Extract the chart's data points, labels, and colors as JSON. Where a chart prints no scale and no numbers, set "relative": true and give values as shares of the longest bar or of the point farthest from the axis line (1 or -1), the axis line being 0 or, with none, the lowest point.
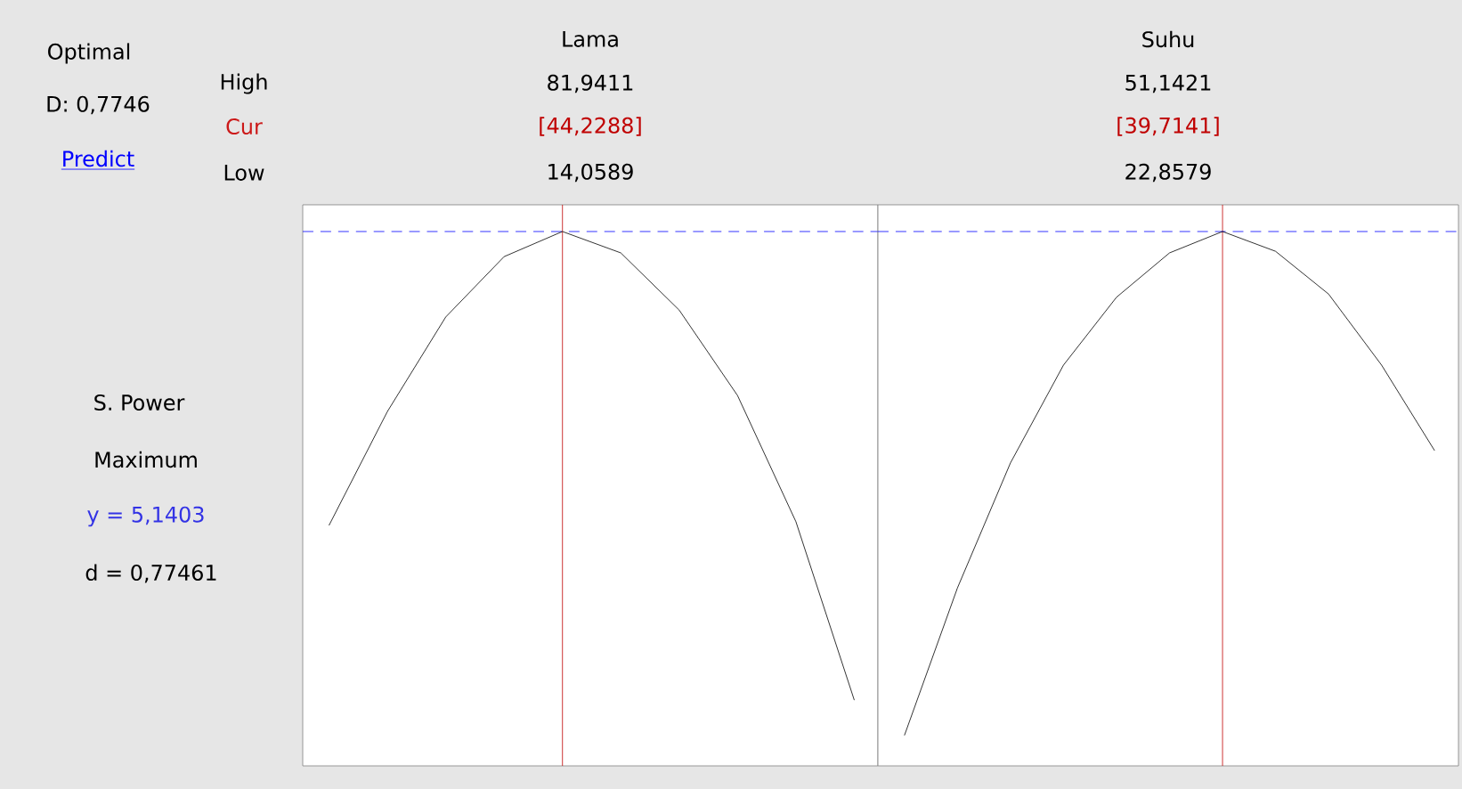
{
  "chart_data": [
    {
      "type": "other",
      "annotations": [
        "Optimal",
        "D: 0,7746",
        "Predict",
        "High",
        "Cur",
        "Low",
        "S. Power",
        "Maximum",
        "y = 5,1403",
        "d = 0,77461"
      ]
    },
    {
      "type": "line",
      "title": "Lama",
      "annotations": [
        "81,9411",
        "14,0589"
      ],
      "relative": true,
      "tick_labels": false,
      "color": "#000000",
      "categories": [
        null,
        null,
        null,
        null,
        null,
        null,
        null,
        null,
        null,
        null
      ],
      "values": [
        0.45,
        0.663,
        0.84,
        0.953,
        1.0,
        0.96,
        0.853,
        0.693,
        0.457,
        0.123
      ],
      "ref_lines": [
        {
          "axis": "x",
          "label": "[44,2288]",
          "color": "#c00000"
        },
        {
          "axis": "y",
          "value": 1,
          "color": "#0000ff",
          "line_style": "dashed"
        }
      ]
    },
    {
      "type": "line",
      "title": "Suhu",
      "annotations": [
        "51,1421",
        "22,8579"
      ],
      "relative": true,
      "tick_labels": false,
      "color": "#000000",
      "categories": [
        null,
        null,
        null,
        null,
        null,
        null,
        null,
        null,
        null,
        null,
        null
      ],
      "values": [
        0.057,
        0.333,
        0.567,
        0.75,
        0.877,
        0.96,
        1.0,
        0.963,
        0.883,
        0.75,
        0.59
      ],
      "ref_lines": [
        {
          "axis": "x",
          "label": "[39,7141]",
          "color": "#c00000"
        },
        {
          "axis": "y",
          "value": 1,
          "color": "#0000ff",
          "line_style": "dashed"
        }
      ]
    }
  ]
}
